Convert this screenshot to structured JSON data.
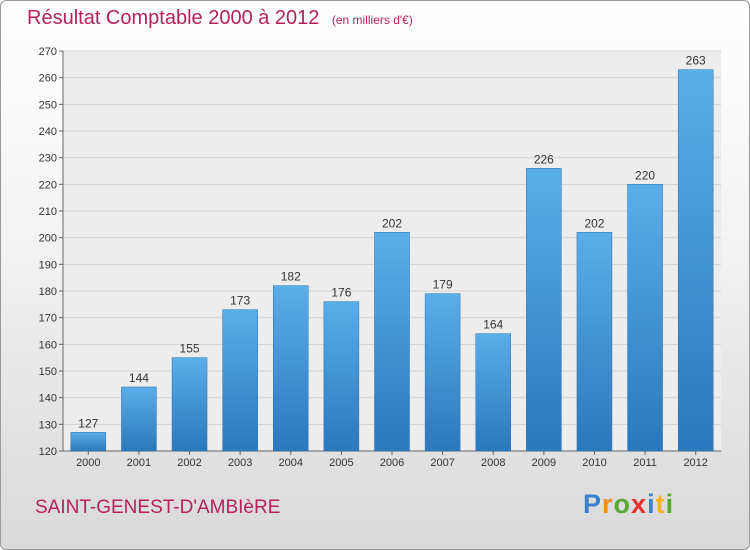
{
  "chart_data": {
    "type": "bar",
    "title": "Résultat Comptable 2000 à 2012",
    "unit_label": "(en milliers d'€)",
    "categories": [
      "2000",
      "2001",
      "2002",
      "2003",
      "2004",
      "2005",
      "2006",
      "2007",
      "2008",
      "2009",
      "2010",
      "2011",
      "2012"
    ],
    "values": [
      127,
      144,
      155,
      173,
      182,
      176,
      202,
      179,
      164,
      226,
      202,
      220,
      263
    ],
    "xlabel": "",
    "ylabel": "",
    "ylim": [
      120,
      270
    ],
    "yticks": [
      120,
      130,
      140,
      150,
      160,
      170,
      180,
      190,
      200,
      210,
      220,
      230,
      240,
      250,
      260,
      270
    ],
    "grid": true,
    "bar_color": "#3f96d9"
  },
  "footer": {
    "town": "SAINT-GENEST-D'AMBIèRE",
    "brand_letters": [
      "P",
      "r",
      "o",
      "x",
      "i",
      "t",
      "i"
    ],
    "brand_colors": [
      "#3b7fd0",
      "#f28a1f",
      "#5aa832",
      "#e23030",
      "#3b7fd0",
      "#f2b31f",
      "#5aa832"
    ]
  }
}
